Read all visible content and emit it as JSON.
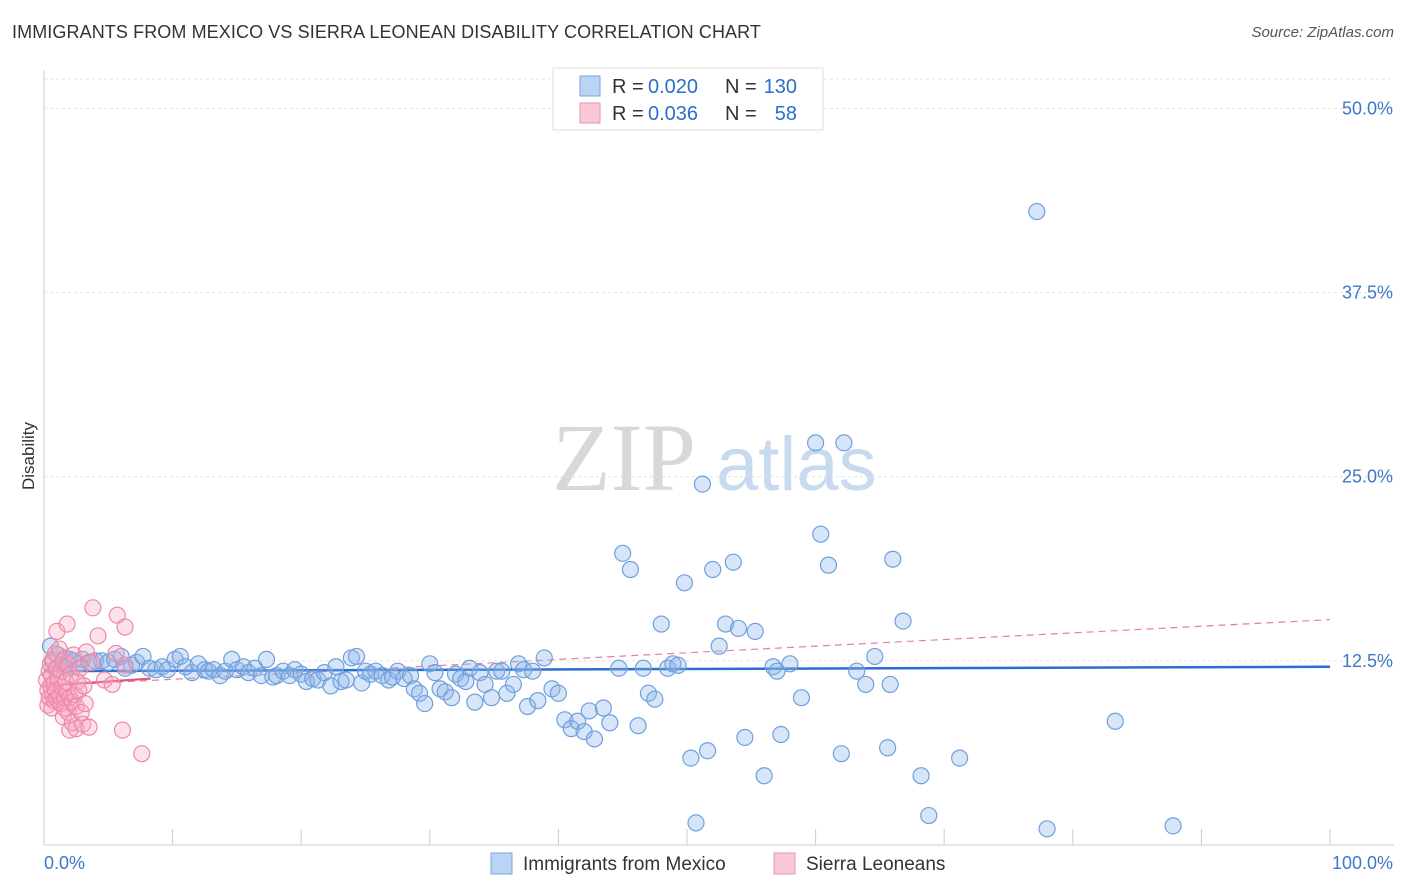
{
  "header": {
    "title": "IMMIGRANTS FROM MEXICO VS SIERRA LEONEAN DISABILITY CORRELATION CHART",
    "source": "Source: ZipAtlas.com"
  },
  "watermark": {
    "zip": "ZIP",
    "atlas": "atlas"
  },
  "legend": [
    {
      "r_label": "R =",
      "r_value": "0.020",
      "n_label": "N =",
      "n_value": "130",
      "color": "#a8c8f0"
    },
    {
      "r_label": "R =",
      "r_value": "0.036",
      "n_label": "N =",
      "n_value": "58",
      "color": "#f5b8c8"
    }
  ],
  "bottom_legend": [
    "Immigrants from Mexico",
    "Sierra Leoneans"
  ],
  "chart_data": {
    "type": "scatter",
    "title": "IMMIGRANTS FROM MEXICO VS SIERRA LEONEAN DISABILITY CORRELATION CHART",
    "xlabel": "",
    "ylabel": "Disability",
    "xlim": [
      0,
      100
    ],
    "ylim": [
      0,
      52
    ],
    "x_tick_labels": [
      "0.0%",
      "100.0%"
    ],
    "y_ticks": [
      12.5,
      25.0,
      37.5,
      50.0
    ],
    "y_tick_labels": [
      "12.5%",
      "25.0%",
      "37.5%",
      "50.0%"
    ],
    "grid": true,
    "series": [
      {
        "name": "Immigrants from Mexico",
        "color": "#6fa0dc",
        "fill": "rgba(140,180,235,0.35)",
        "trend": {
          "x": [
            0,
            100
          ],
          "y": [
            11.8,
            12.1
          ],
          "color": "#2a6fcb",
          "style": "solid"
        },
        "points": [
          [
            0.5,
            13.5
          ],
          [
            0.7,
            12.4
          ],
          [
            0.9,
            11.9
          ],
          [
            1.1,
            12.9
          ],
          [
            1.3,
            12.2
          ],
          [
            1.6,
            12.7
          ],
          [
            1.8,
            12.0
          ],
          [
            2.0,
            12.6
          ],
          [
            2.3,
            12.5
          ],
          [
            2.7,
            12.3
          ],
          [
            3.0,
            12.6
          ],
          [
            3.5,
            12.4
          ],
          [
            4.0,
            12.5
          ],
          [
            4.5,
            12.5
          ],
          [
            5.0,
            12.4
          ],
          [
            5.5,
            12.6
          ],
          [
            6.0,
            12.8
          ],
          [
            6.3,
            12.0
          ],
          [
            6.8,
            12.2
          ],
          [
            7.2,
            12.4
          ],
          [
            7.7,
            12.8
          ],
          [
            8.2,
            12.0
          ],
          [
            8.7,
            11.9
          ],
          [
            9.2,
            12.1
          ],
          [
            9.6,
            11.9
          ],
          [
            10.2,
            12.6
          ],
          [
            10.6,
            12.8
          ],
          [
            11.0,
            12.1
          ],
          [
            11.5,
            11.7
          ],
          [
            12.0,
            12.3
          ],
          [
            12.5,
            11.9
          ],
          [
            12.8,
            11.8
          ],
          [
            13.2,
            11.9
          ],
          [
            13.7,
            11.5
          ],
          [
            14.1,
            11.8
          ],
          [
            14.6,
            12.6
          ],
          [
            15.0,
            11.9
          ],
          [
            15.5,
            12.1
          ],
          [
            15.9,
            11.7
          ],
          [
            16.4,
            12.0
          ],
          [
            16.9,
            11.5
          ],
          [
            17.3,
            12.6
          ],
          [
            17.8,
            11.4
          ],
          [
            18.1,
            11.5
          ],
          [
            18.6,
            11.8
          ],
          [
            19.1,
            11.5
          ],
          [
            19.5,
            11.9
          ],
          [
            20.0,
            11.6
          ],
          [
            20.4,
            11.1
          ],
          [
            20.9,
            11.3
          ],
          [
            21.3,
            11.2
          ],
          [
            21.8,
            11.7
          ],
          [
            22.3,
            10.8
          ],
          [
            22.7,
            12.1
          ],
          [
            23.1,
            11.1
          ],
          [
            23.5,
            11.2
          ],
          [
            23.9,
            12.7
          ],
          [
            24.3,
            12.8
          ],
          [
            24.7,
            11.0
          ],
          [
            25.0,
            11.8
          ],
          [
            25.4,
            11.6
          ],
          [
            25.8,
            11.8
          ],
          [
            26.3,
            11.5
          ],
          [
            26.8,
            11.2
          ],
          [
            27.1,
            11.4
          ],
          [
            27.5,
            11.8
          ],
          [
            28.0,
            11.3
          ],
          [
            28.5,
            11.5
          ],
          [
            28.8,
            10.6
          ],
          [
            29.2,
            10.3
          ],
          [
            29.6,
            9.6
          ],
          [
            30.0,
            12.3
          ],
          [
            30.4,
            11.7
          ],
          [
            30.8,
            10.6
          ],
          [
            31.2,
            10.4
          ],
          [
            31.7,
            10.0
          ],
          [
            32.0,
            11.6
          ],
          [
            32.4,
            11.3
          ],
          [
            32.8,
            11.1
          ],
          [
            33.1,
            12.0
          ],
          [
            33.5,
            9.7
          ],
          [
            33.9,
            11.7
          ],
          [
            34.3,
            10.9
          ],
          [
            34.8,
            10.0
          ],
          [
            35.2,
            11.8
          ],
          [
            35.6,
            11.8
          ],
          [
            36.0,
            10.3
          ],
          [
            36.5,
            10.9
          ],
          [
            36.9,
            12.3
          ],
          [
            37.3,
            11.9
          ],
          [
            37.6,
            9.4
          ],
          [
            38.0,
            11.8
          ],
          [
            38.4,
            9.8
          ],
          [
            38.9,
            12.7
          ],
          [
            39.5,
            10.6
          ],
          [
            40.0,
            10.3
          ],
          [
            40.5,
            8.5
          ],
          [
            41.0,
            7.9
          ],
          [
            41.5,
            8.4
          ],
          [
            42.0,
            7.7
          ],
          [
            42.4,
            9.1
          ],
          [
            42.8,
            7.2
          ],
          [
            43.5,
            9.3
          ],
          [
            44.0,
            8.3
          ],
          [
            44.7,
            12.0
          ],
          [
            45.0,
            19.8
          ],
          [
            45.6,
            18.7
          ],
          [
            46.2,
            8.1
          ],
          [
            46.6,
            12.0
          ],
          [
            47.0,
            10.3
          ],
          [
            47.5,
            9.9
          ],
          [
            48.0,
            15.0
          ],
          [
            48.5,
            12.0
          ],
          [
            48.9,
            12.3
          ],
          [
            49.3,
            12.2
          ],
          [
            49.8,
            17.8
          ],
          [
            50.3,
            5.9
          ],
          [
            50.7,
            1.5
          ],
          [
            51.2,
            24.5
          ],
          [
            51.6,
            6.4
          ],
          [
            52.0,
            18.7
          ],
          [
            52.5,
            13.5
          ],
          [
            53.0,
            15.0
          ],
          [
            53.6,
            19.2
          ],
          [
            54.0,
            14.7
          ],
          [
            54.5,
            7.3
          ],
          [
            55.3,
            14.5
          ],
          [
            56.0,
            4.7
          ],
          [
            56.7,
            12.1
          ],
          [
            57.0,
            11.8
          ],
          [
            57.3,
            7.5
          ],
          [
            58.0,
            12.3
          ],
          [
            58.9,
            10.0
          ],
          [
            60.0,
            27.3
          ],
          [
            60.4,
            21.1
          ],
          [
            61.0,
            19.0
          ],
          [
            62.0,
            6.2
          ],
          [
            62.2,
            27.3
          ],
          [
            63.2,
            11.8
          ],
          [
            63.9,
            10.9
          ],
          [
            64.6,
            12.8
          ],
          [
            65.6,
            6.6
          ],
          [
            65.8,
            10.9
          ],
          [
            66.0,
            19.4
          ],
          [
            66.8,
            15.2
          ],
          [
            68.2,
            4.7
          ],
          [
            68.8,
            2.0
          ],
          [
            71.2,
            5.9
          ],
          [
            77.2,
            43.0
          ],
          [
            78.0,
            1.1
          ],
          [
            83.3,
            8.4
          ],
          [
            87.8,
            1.3
          ]
        ]
      },
      {
        "name": "Sierra Leoneans",
        "color": "#ee88a8",
        "fill": "rgba(245,170,195,0.35)",
        "trend": {
          "x": [
            0,
            8.3
          ],
          "y": [
            10.8,
            11.3
          ],
          "color": "#e0557f",
          "style": "solid"
        },
        "trend_ext": {
          "x": [
            0,
            100
          ],
          "y": [
            10.8,
            15.3
          ],
          "color": "#e67f9c",
          "style": "dashed"
        },
        "points": [
          [
            0.2,
            11.2
          ],
          [
            0.3,
            10.5
          ],
          [
            0.3,
            9.5
          ],
          [
            0.4,
            11.8
          ],
          [
            0.4,
            10.0
          ],
          [
            0.5,
            12.3
          ],
          [
            0.5,
            10.8
          ],
          [
            0.6,
            9.3
          ],
          [
            0.6,
            11.5
          ],
          [
            0.7,
            10.2
          ],
          [
            0.7,
            12.6
          ],
          [
            0.8,
            9.8
          ],
          [
            0.8,
            11.0
          ],
          [
            0.9,
            13.0
          ],
          [
            0.9,
            10.5
          ],
          [
            1.0,
            14.5
          ],
          [
            1.0,
            9.9
          ],
          [
            1.0,
            12.0
          ],
          [
            1.1,
            11.3
          ],
          [
            1.2,
            10.1
          ],
          [
            1.2,
            13.3
          ],
          [
            1.3,
            9.6
          ],
          [
            1.3,
            11.8
          ],
          [
            1.4,
            10.7
          ],
          [
            1.5,
            8.7
          ],
          [
            1.5,
            12.5
          ],
          [
            1.6,
            10.0
          ],
          [
            1.6,
            9.3
          ],
          [
            1.7,
            11.1
          ],
          [
            1.8,
            15.0
          ],
          [
            1.8,
            10.4
          ],
          [
            1.9,
            12.2
          ],
          [
            1.9,
            9.0
          ],
          [
            2.0,
            10.0
          ],
          [
            2.0,
            7.8
          ],
          [
            2.1,
            11.6
          ],
          [
            2.2,
            9.7
          ],
          [
            2.2,
            8.3
          ],
          [
            2.3,
            12.9
          ],
          [
            2.4,
            10.2
          ],
          [
            2.5,
            7.9
          ],
          [
            2.5,
            9.4
          ],
          [
            2.6,
            11.1
          ],
          [
            2.7,
            10.5
          ],
          [
            2.8,
            12.0
          ],
          [
            2.9,
            9.0
          ],
          [
            3.0,
            8.2
          ],
          [
            3.1,
            10.8
          ],
          [
            3.2,
            9.6
          ],
          [
            3.3,
            13.1
          ],
          [
            3.5,
            8.0
          ],
          [
            3.7,
            12.4
          ],
          [
            3.8,
            16.1
          ],
          [
            4.2,
            14.2
          ],
          [
            4.7,
            11.2
          ],
          [
            5.3,
            10.9
          ],
          [
            5.6,
            13.0
          ],
          [
            5.7,
            15.6
          ],
          [
            6.1,
            7.8
          ],
          [
            6.3,
            12.2
          ],
          [
            6.3,
            14.8
          ],
          [
            7.6,
            6.2
          ]
        ]
      }
    ]
  }
}
